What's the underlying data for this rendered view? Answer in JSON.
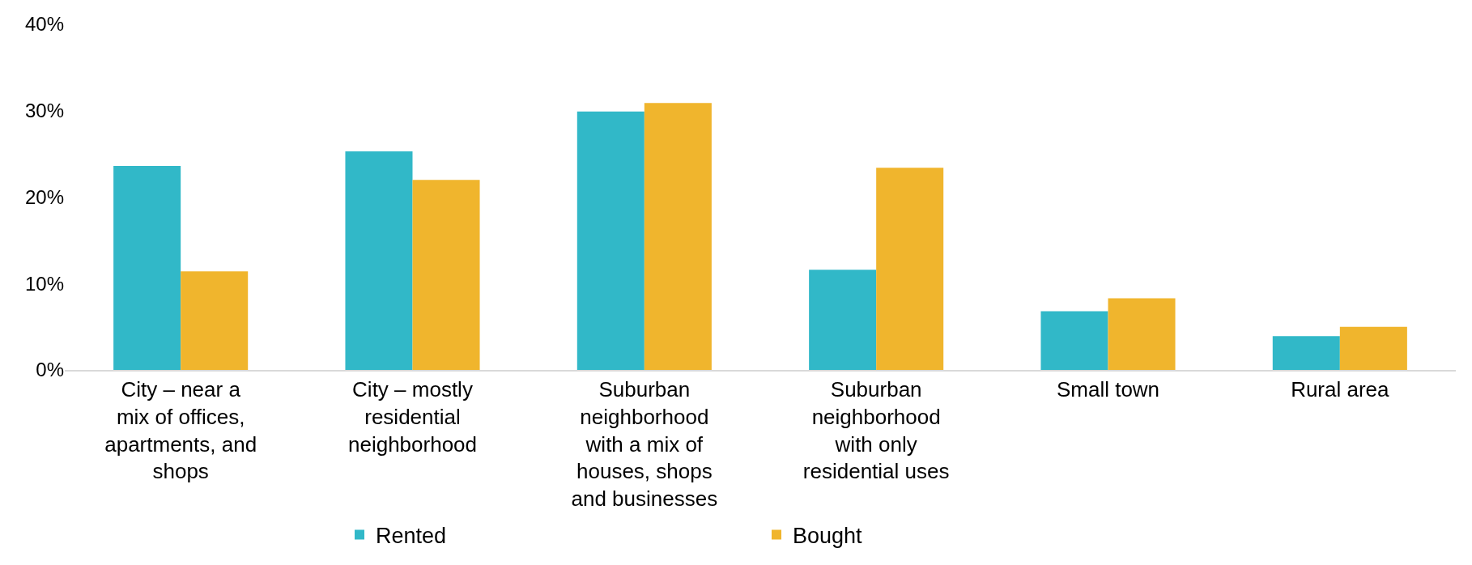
{
  "chart_data": {
    "type": "bar",
    "categories": [
      "City – near a mix of offices, apartments, and shops",
      "City – mostly residential neighborhood",
      "Suburban neighborhood with a mix of houses, shops and businesses",
      "Suburban neighborhood with only residential uses",
      "Small town",
      "Rural area"
    ],
    "series": [
      {
        "name": "Rented",
        "color": "#31b8c8",
        "values": [
          23.6,
          25.3,
          29.9,
          11.6,
          6.8,
          3.9
        ]
      },
      {
        "name": "Bought",
        "color": "#f0b52d",
        "values": [
          11.4,
          22.0,
          30.9,
          23.4,
          8.3,
          5.0
        ]
      }
    ],
    "ylim": [
      0,
      40
    ],
    "yticks": [
      {
        "value": 0,
        "label": "0%"
      },
      {
        "value": 10,
        "label": "10%"
      },
      {
        "value": 20,
        "label": "20%"
      },
      {
        "value": 30,
        "label": "30%"
      },
      {
        "value": 40,
        "label": "40%"
      }
    ],
    "legend": "bottom"
  }
}
